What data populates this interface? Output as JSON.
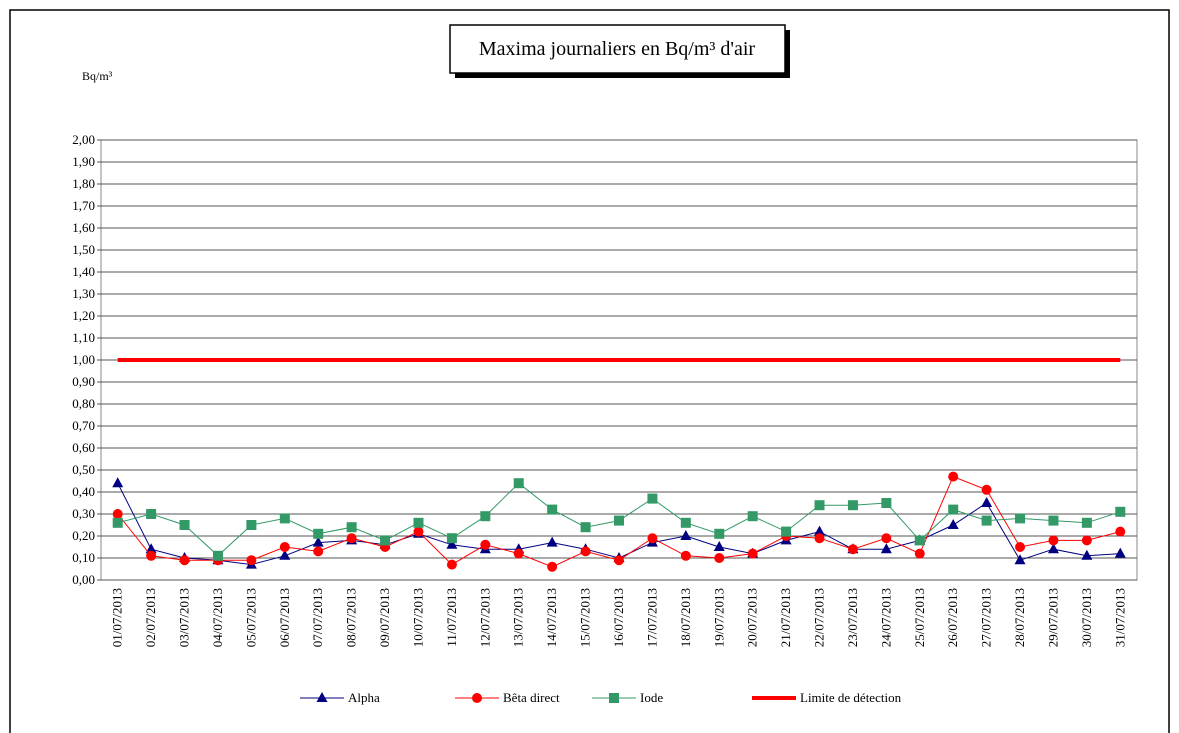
{
  "chart_data": {
    "type": "line",
    "title": "Maxima journaliers en Bq/m³ d'air",
    "y_label": "Bq/m³",
    "categories": [
      "01/07/2013",
      "02/07/2013",
      "03/07/2013",
      "04/07/2013",
      "05/07/2013",
      "06/07/2013",
      "07/07/2013",
      "08/07/2013",
      "09/07/2013",
      "10/07/2013",
      "11/07/2013",
      "12/07/2013",
      "13/07/2013",
      "14/07/2013",
      "15/07/2013",
      "16/07/2013",
      "17/07/2013",
      "18/07/2013",
      "19/07/2013",
      "20/07/2013",
      "21/07/2013",
      "22/07/2013",
      "23/07/2013",
      "24/07/2013",
      "25/07/2013",
      "26/07/2013",
      "27/07/2013",
      "28/07/2013",
      "29/07/2013",
      "30/07/2013",
      "31/07/2013"
    ],
    "series": [
      {
        "name": "Alpha",
        "color": "#000080",
        "marker": "triangle",
        "values": [
          0.44,
          0.14,
          0.1,
          0.09,
          0.07,
          0.11,
          0.17,
          0.18,
          0.16,
          0.21,
          0.16,
          0.14,
          0.14,
          0.17,
          0.14,
          0.1,
          0.17,
          0.2,
          0.15,
          0.12,
          0.18,
          0.22,
          0.14,
          0.14,
          0.18,
          0.25,
          0.35,
          0.09,
          0.14,
          0.11,
          0.12
        ]
      },
      {
        "name": "Bêta direct",
        "color": "#ff0000",
        "marker": "circle",
        "values": [
          0.3,
          0.11,
          0.09,
          0.09,
          0.09,
          0.15,
          0.13,
          0.19,
          0.15,
          0.22,
          0.07,
          0.16,
          0.12,
          0.06,
          0.13,
          0.09,
          0.19,
          0.11,
          0.1,
          0.12,
          0.2,
          0.19,
          0.14,
          0.19,
          0.12,
          0.47,
          0.41,
          0.15,
          0.18,
          0.18,
          0.22
        ]
      },
      {
        "name": "Iode",
        "color": "#339966",
        "marker": "square",
        "values": [
          0.26,
          0.3,
          0.25,
          0.11,
          0.25,
          0.28,
          0.21,
          0.24,
          0.18,
          0.26,
          0.19,
          0.29,
          0.44,
          0.32,
          0.24,
          0.27,
          0.37,
          0.26,
          0.21,
          0.29,
          0.22,
          0.34,
          0.34,
          0.35,
          0.18,
          0.32,
          0.27,
          0.28,
          0.27,
          0.26,
          0.31
        ]
      },
      {
        "name": "Limite de détection",
        "color": "#ff0000",
        "line_width": 4,
        "values": [
          1,
          1,
          1,
          1,
          1,
          1,
          1,
          1,
          1,
          1,
          1,
          1,
          1,
          1,
          1,
          1,
          1,
          1,
          1,
          1,
          1,
          1,
          1,
          1,
          1,
          1,
          1,
          1,
          1,
          1,
          1
        ]
      }
    ],
    "ylim": [
      0,
      2
    ],
    "yticks": [
      {
        "value": 0,
        "label": "0,00"
      },
      {
        "value": 0.1,
        "label": "0,10"
      },
      {
        "value": 0.2,
        "label": "0,20"
      },
      {
        "value": 0.3,
        "label": "0,30"
      },
      {
        "value": 0.4,
        "label": "0,40"
      },
      {
        "value": 0.5,
        "label": "0,50"
      },
      {
        "value": 0.6,
        "label": "0,60"
      },
      {
        "value": 0.7,
        "label": "0,70"
      },
      {
        "value": 0.8,
        "label": "0,80"
      },
      {
        "value": 0.9,
        "label": "0,90"
      },
      {
        "value": 1,
        "label": "1,00"
      },
      {
        "value": 1.1,
        "label": "1,10"
      },
      {
        "value": 1.2,
        "label": "1,20"
      },
      {
        "value": 1.3,
        "label": "1,30"
      },
      {
        "value": 1.4,
        "label": "1,40"
      },
      {
        "value": 1.5,
        "label": "1,50"
      },
      {
        "value": 1.6,
        "label": "1,60"
      },
      {
        "value": 1.7,
        "label": "1,70"
      },
      {
        "value": 1.8,
        "label": "1,80"
      },
      {
        "value": 1.9,
        "label": "1,90"
      },
      {
        "value": 2,
        "label": "2,00"
      }
    ],
    "grid": true
  }
}
